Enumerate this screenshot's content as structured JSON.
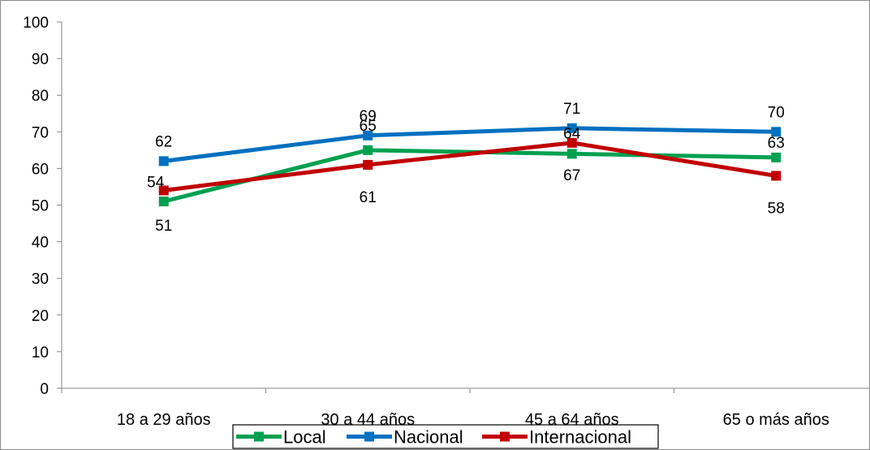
{
  "chart_data": {
    "type": "line",
    "title": "",
    "xlabel": "",
    "ylabel": "",
    "categories": [
      "18 a 29 años",
      "30 a 44 años",
      "45 a 64 años",
      "65 o más años"
    ],
    "ylim": [
      0,
      100
    ],
    "yticks": [
      "0",
      "10",
      "20",
      "30",
      "40",
      "50",
      "60",
      "70",
      "80",
      "90",
      "100"
    ],
    "grid": false,
    "legend_position": "bottom",
    "series": [
      {
        "name": "Local",
        "color": "#00A050",
        "values": [
          51,
          65,
          64,
          63
        ],
        "labels": [
          "51",
          "65",
          "64",
          "63"
        ]
      },
      {
        "name": "Nacional",
        "color": "#0070C0",
        "values": [
          62,
          69,
          71,
          70
        ],
        "labels": [
          "62",
          "69",
          "71",
          "70"
        ]
      },
      {
        "name": "Internacional",
        "color": "#C00000",
        "values": [
          54,
          61,
          67,
          58
        ],
        "labels": [
          "54",
          "61",
          "67",
          "58"
        ]
      }
    ]
  }
}
